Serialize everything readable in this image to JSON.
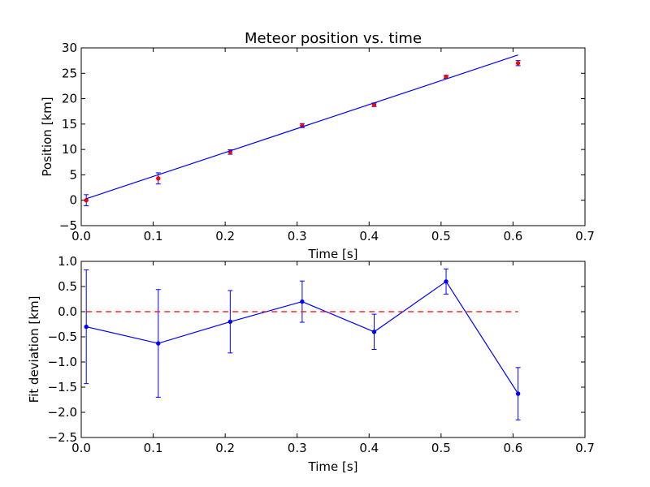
{
  "chart_data": [
    {
      "type": "scatter",
      "title": "Meteor position vs. time",
      "xlabel": "Time [s]",
      "ylabel": "Position [km]",
      "xlim": [
        0.0,
        0.7
      ],
      "ylim": [
        -5,
        30
      ],
      "x_ticks": [
        "0.0",
        "0.1",
        "0.2",
        "0.3",
        "0.4",
        "0.5",
        "0.6",
        "0.7"
      ],
      "y_ticks": [
        "−5",
        "0",
        "5",
        "10",
        "15",
        "20",
        "25",
        "30"
      ],
      "grid": false,
      "series": [
        {
          "kind": "errorbar-points",
          "color": "#ff0000",
          "x": [
            0.007,
            0.107,
            0.207,
            0.307,
            0.407,
            0.507,
            0.607
          ],
          "y": [
            0.0,
            4.3,
            9.5,
            14.7,
            18.8,
            24.3,
            27.0
          ],
          "yerr": [
            1.1,
            1.1,
            0.45,
            0.4,
            0.35,
            0.3,
            0.5
          ]
        },
        {
          "kind": "fit-line",
          "color": "#0000ff",
          "x": [
            0.007,
            0.607
          ],
          "y": [
            0.3,
            28.6
          ]
        }
      ]
    },
    {
      "type": "line",
      "title": "",
      "xlabel": "Time [s]",
      "ylabel": "Fit deviation [km]",
      "xlim": [
        0.0,
        0.7
      ],
      "ylim": [
        -2.5,
        1.0
      ],
      "x_ticks": [
        "0.0",
        "0.1",
        "0.2",
        "0.3",
        "0.4",
        "0.5",
        "0.6",
        "0.7"
      ],
      "y_ticks": [
        "−2.5",
        "−2.0",
        "−1.5",
        "−1.0",
        "−0.5",
        "0.0",
        "0.5",
        "1.0"
      ],
      "grid": false,
      "series": [
        {
          "kind": "errorbar-line",
          "color": "#0000ff",
          "x": [
            0.007,
            0.107,
            0.207,
            0.307,
            0.407,
            0.507,
            0.607
          ],
          "y": [
            -0.3,
            -0.63,
            -0.2,
            0.2,
            -0.4,
            0.6,
            -1.63
          ],
          "yerr": [
            1.13,
            1.07,
            0.62,
            0.41,
            0.35,
            0.25,
            0.52
          ]
        },
        {
          "kind": "reference-line",
          "color": "#ff0000",
          "style": "dashed",
          "x": [
            0.007,
            0.607
          ],
          "y": [
            0.0,
            0.0
          ]
        }
      ]
    }
  ]
}
